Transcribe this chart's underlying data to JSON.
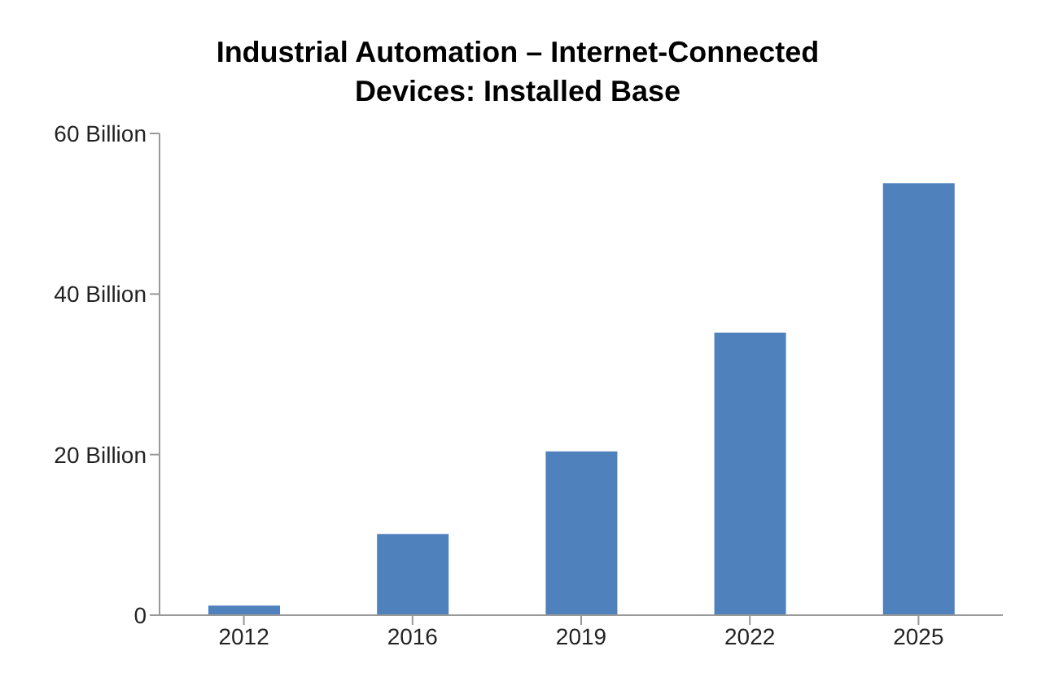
{
  "chart_data": {
    "type": "bar",
    "title": "Industrial Automation – Internet-Connected Devices: Installed Base",
    "categories": [
      "2012",
      "2016",
      "2019",
      "2022",
      "2025"
    ],
    "values": [
      1.2,
      10.1,
      20.4,
      35.2,
      53.8
    ],
    "color": "#4f81bd",
    "ylim": [
      0,
      60
    ],
    "yticks": [
      {
        "value": 0,
        "label": "0"
      },
      {
        "value": 20,
        "label": "20 Billion"
      },
      {
        "value": 40,
        "label": "40 Billion"
      },
      {
        "value": 60,
        "label": "60 Billion"
      }
    ],
    "grid": false,
    "legend": false
  }
}
